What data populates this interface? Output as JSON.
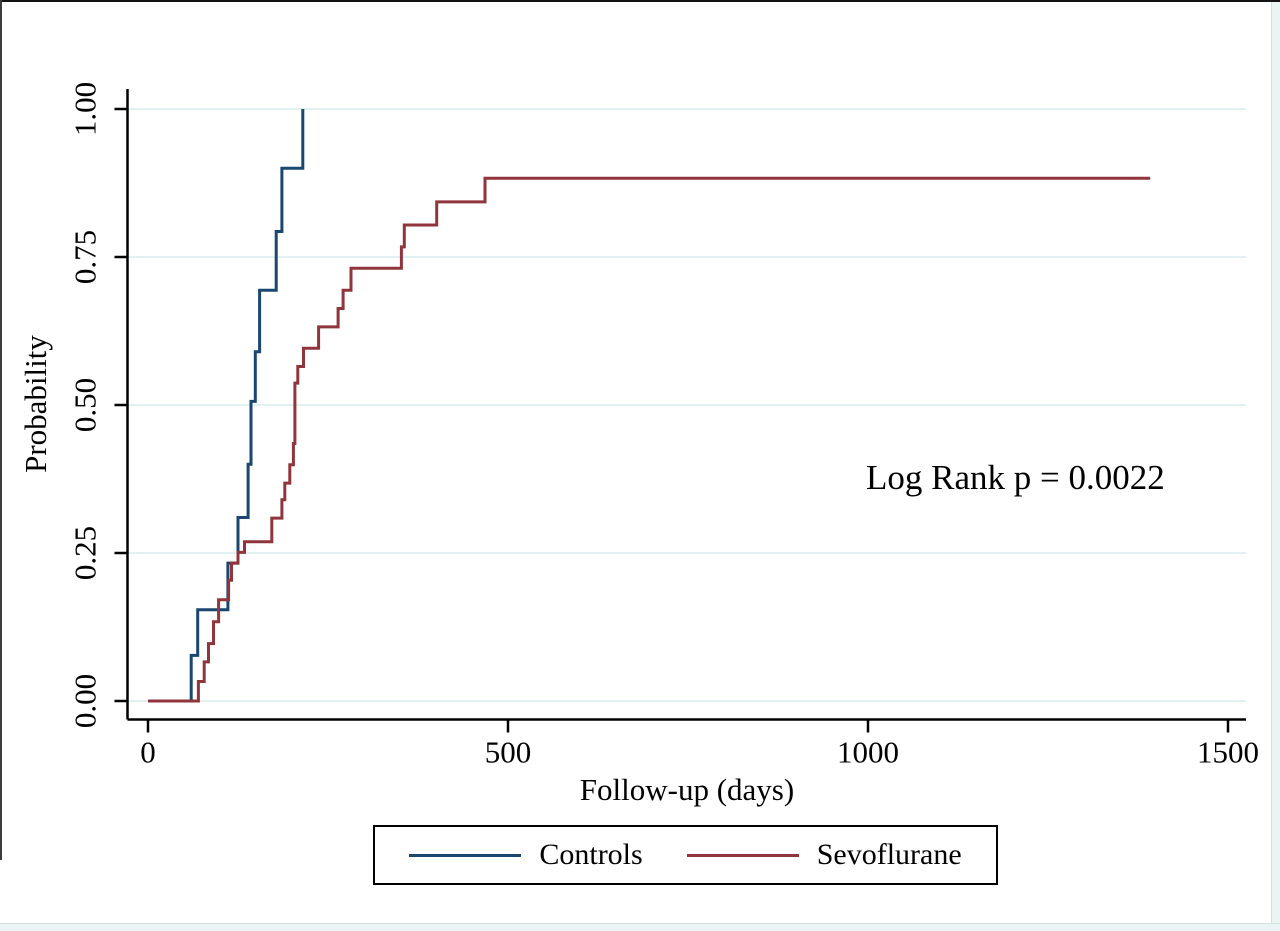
{
  "chart_data": {
    "type": "line",
    "subtype": "step-survival-cumulative-incidence",
    "title": "",
    "xlabel": "Follow-up (days)",
    "ylabel": "Probability",
    "xlim": [
      0,
      1525
    ],
    "ylim": [
      0,
      1.0
    ],
    "grid": true,
    "gridline_color": "#e1f0f0",
    "axis_color": "#000000",
    "x_ticks": [
      {
        "value": 0,
        "label": "0"
      },
      {
        "value": 500,
        "label": "500"
      },
      {
        "value": 1000,
        "label": "1000"
      },
      {
        "value": 1500,
        "label": "1500"
      }
    ],
    "y_ticks": [
      {
        "value": 0.0,
        "label": "0.00"
      },
      {
        "value": 0.25,
        "label": "0.25"
      },
      {
        "value": 0.5,
        "label": "0.50"
      },
      {
        "value": 0.75,
        "label": "0.75"
      },
      {
        "value": 1.0,
        "label": "1.00"
      }
    ],
    "annotation": "Log Rank p = 0.0022",
    "legend": {
      "position": "bottom"
    },
    "series": [
      {
        "name": "Controls",
        "color": "#1a476f",
        "steps": [
          [
            0,
            0
          ],
          [
            60,
            0.077
          ],
          [
            69,
            0.154
          ],
          [
            111,
            0.233
          ],
          [
            125,
            0.31
          ],
          [
            139,
            0.4
          ],
          [
            143,
            0.506
          ],
          [
            149,
            0.59
          ],
          [
            155,
            0.694
          ],
          [
            178,
            0.793
          ],
          [
            186,
            0.9
          ],
          [
            215,
            1.0
          ]
        ]
      },
      {
        "name": "Sevoflurane",
        "color": "#90353b",
        "steps": [
          [
            0,
            0
          ],
          [
            70,
            0.033
          ],
          [
            78,
            0.066
          ],
          [
            84,
            0.097
          ],
          [
            91,
            0.134
          ],
          [
            98,
            0.171
          ],
          [
            112,
            0.204
          ],
          [
            116,
            0.233
          ],
          [
            125,
            0.251
          ],
          [
            134,
            0.269
          ],
          [
            172,
            0.309
          ],
          [
            186,
            0.34
          ],
          [
            190,
            0.368
          ],
          [
            197,
            0.399
          ],
          [
            202,
            0.435
          ],
          [
            204,
            0.537
          ],
          [
            208,
            0.565
          ],
          [
            216,
            0.596
          ],
          [
            237,
            0.632
          ],
          [
            264,
            0.663
          ],
          [
            271,
            0.694
          ],
          [
            282,
            0.731
          ],
          [
            352,
            0.767
          ],
          [
            356,
            0.804
          ],
          [
            401,
            0.843
          ],
          [
            468,
            0.883
          ],
          [
            1392,
            0.883
          ]
        ]
      }
    ]
  }
}
